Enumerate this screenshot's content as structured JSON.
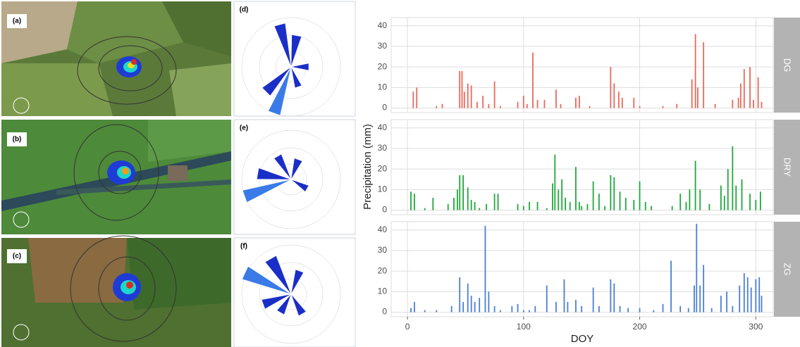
{
  "panels": {
    "labels": [
      "(a)",
      "(b)",
      "(c)",
      "(d)",
      "(e)",
      "(f)"
    ]
  },
  "chart_data": {
    "type": "bar",
    "x_label": "DOY",
    "y_label": "Precipitation (mm)",
    "xlim": [
      -14,
      315
    ],
    "xticks": [
      0,
      100,
      200,
      300
    ],
    "ylim": [
      -2.2,
      44
    ],
    "yticks": [
      0,
      10,
      20,
      30,
      40
    ],
    "grid": true,
    "series": [
      {
        "name": "DG",
        "color": "#e8695c",
        "x": [
          5,
          8,
          25,
          30,
          45,
          47,
          49,
          52,
          55,
          60,
          65,
          70,
          75,
          80,
          95,
          100,
          103,
          108,
          112,
          118,
          128,
          132,
          145,
          148,
          157,
          175,
          178,
          182,
          185,
          195,
          200,
          220,
          232,
          245,
          248,
          250,
          255,
          265,
          280,
          285,
          287,
          290,
          295,
          298,
          302,
          305
        ],
        "values": [
          8,
          10,
          1,
          2,
          18,
          18,
          8,
          12,
          11,
          3,
          6,
          2,
          13,
          1,
          3,
          6,
          2,
          27,
          4,
          4,
          9,
          2,
          5,
          6,
          1,
          20,
          12,
          8,
          5,
          5,
          1,
          1,
          2,
          14,
          36,
          10,
          32,
          2,
          4,
          5,
          12,
          19,
          20,
          4,
          15,
          3
        ]
      },
      {
        "name": "DRY",
        "color": "#1fa83a",
        "x": [
          3,
          6,
          15,
          22,
          35,
          40,
          43,
          45,
          48,
          52,
          55,
          58,
          62,
          68,
          75,
          78,
          95,
          100,
          105,
          112,
          120,
          125,
          127,
          130,
          133,
          136,
          140,
          145,
          148,
          150,
          155,
          160,
          165,
          170,
          175,
          178,
          183,
          188,
          195,
          200,
          205,
          210,
          228,
          235,
          240,
          243,
          248,
          252,
          260,
          270,
          273,
          276,
          280,
          283,
          288,
          295,
          300,
          304
        ],
        "values": [
          9,
          8,
          1,
          6,
          3,
          6,
          10,
          17,
          17,
          11,
          5,
          4,
          1,
          3,
          8,
          8,
          3,
          2,
          4,
          4,
          1,
          13,
          27,
          10,
          15,
          6,
          4,
          21,
          4,
          2,
          3,
          14,
          8,
          2,
          17,
          16,
          9,
          6,
          5,
          14,
          4,
          2,
          2,
          8,
          4,
          10,
          24,
          10,
          3,
          12,
          7,
          20,
          31,
          12,
          15,
          8,
          5,
          9
        ]
      },
      {
        "name": "ZG",
        "color": "#4a7fd6",
        "x": [
          3,
          6,
          15,
          25,
          38,
          45,
          48,
          52,
          55,
          58,
          62,
          67,
          70,
          75,
          80,
          90,
          95,
          100,
          105,
          110,
          120,
          128,
          135,
          138,
          145,
          150,
          160,
          165,
          175,
          178,
          183,
          190,
          200,
          212,
          220,
          227,
          235,
          242,
          247,
          249,
          252,
          255,
          262,
          270,
          275,
          280,
          286,
          290,
          293,
          296,
          300,
          303,
          305
        ],
        "values": [
          2,
          5,
          1,
          1,
          3,
          17,
          5,
          14,
          8,
          5,
          7,
          42,
          10,
          3,
          1,
          3,
          4,
          1,
          1,
          3,
          13,
          5,
          16,
          5,
          6,
          3,
          12,
          3,
          16,
          14,
          3,
          2,
          2,
          1,
          4,
          25,
          3,
          2,
          13,
          43,
          13,
          23,
          2,
          8,
          10,
          3,
          13,
          19,
          17,
          12,
          16,
          17,
          8
        ]
      }
    ]
  }
}
